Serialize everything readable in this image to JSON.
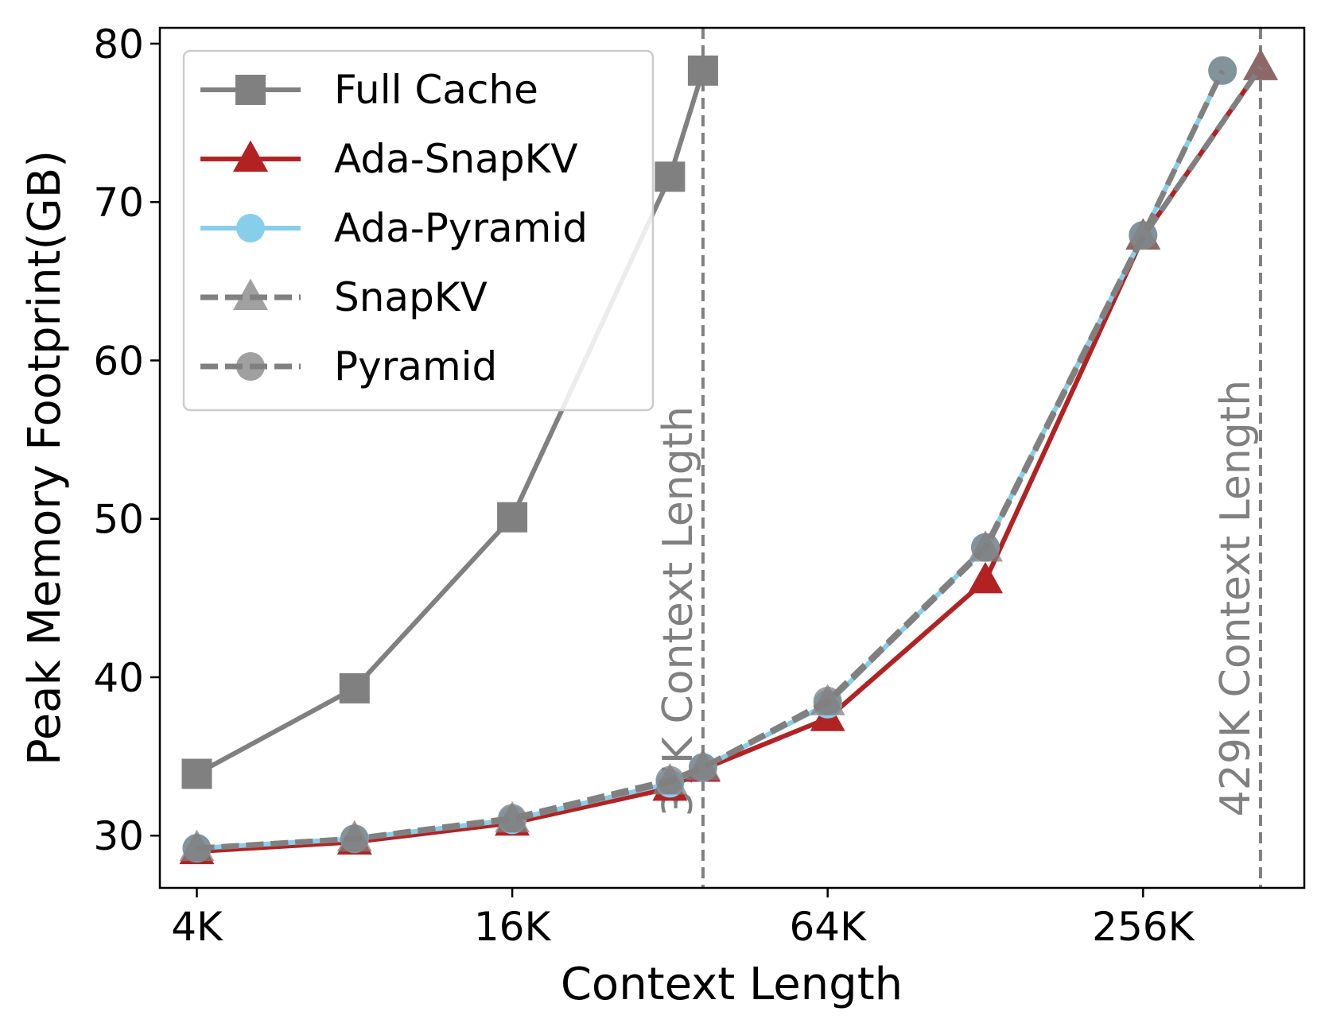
{
  "chart_data": {
    "type": "line",
    "xlabel": "Context Length",
    "ylabel": "Peak Memory Footprint(GB)",
    "x_scale": "log2",
    "xlim": [
      3.4,
      520
    ],
    "ylim": [
      26.7,
      81
    ],
    "x_ticks": [
      4,
      16,
      64,
      256
    ],
    "x_tick_labels": [
      "4K",
      "16K",
      "64K",
      "256K"
    ],
    "y_ticks": [
      30,
      40,
      50,
      60,
      70,
      80
    ],
    "y_tick_labels": [
      "30",
      "40",
      "50",
      "60",
      "70",
      "80"
    ],
    "grid": false,
    "legend_position": "top-left",
    "series": [
      {
        "name": "Full Cache",
        "color": "#808080",
        "marker": "square",
        "linestyle": "solid",
        "markerAlpha": 1,
        "x": [
          4,
          8,
          16,
          32,
          37
        ],
        "y": [
          33.9,
          39.3,
          50.1,
          71.6,
          78.3
        ]
      },
      {
        "name": "Ada-SnapKV",
        "color": "#b22222",
        "marker": "triangle",
        "linestyle": "solid",
        "markerAlpha": 1,
        "x": [
          4,
          8,
          16,
          32,
          37,
          64,
          128,
          256,
          429
        ],
        "y": [
          29.0,
          29.6,
          30.8,
          33.0,
          34.2,
          37.4,
          46.1,
          67.8,
          78.5
        ]
      },
      {
        "name": "Ada-Pyramid",
        "color": "#87ceeb",
        "marker": "circle",
        "linestyle": "solid",
        "markerAlpha": 1,
        "x": [
          4,
          8,
          16,
          32,
          37,
          64,
          128,
          256,
          363
        ],
        "y": [
          29.2,
          29.8,
          31.0,
          33.3,
          34.3,
          38.3,
          48.2,
          67.9,
          78.3
        ]
      },
      {
        "name": "SnapKV",
        "color": "#808080",
        "marker": "triangle",
        "linestyle": "dashed",
        "markerAlpha": 0.75,
        "x": [
          4,
          8,
          16,
          32,
          37,
          64,
          128,
          256,
          429
        ],
        "y": [
          29.2,
          29.8,
          31.0,
          33.4,
          34.3,
          38.4,
          48.1,
          67.8,
          78.5
        ]
      },
      {
        "name": "Pyramid",
        "color": "#808080",
        "marker": "circle",
        "linestyle": "dashed",
        "markerAlpha": 0.75,
        "x": [
          4,
          8,
          16,
          32,
          37,
          64,
          128,
          256,
          363
        ],
        "y": [
          29.2,
          29.8,
          31.1,
          33.5,
          34.3,
          38.5,
          48.2,
          67.9,
          78.3
        ]
      }
    ],
    "vertical_lines": [
      {
        "x": 37,
        "label": "37K Context Length",
        "color": "#808080"
      },
      {
        "x": 429,
        "label": "429K Context Length",
        "color": "#808080"
      }
    ]
  }
}
